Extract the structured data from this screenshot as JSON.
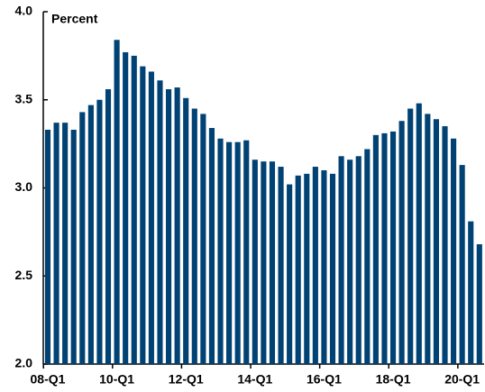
{
  "chart_data": {
    "type": "bar",
    "title": "Percent",
    "categories": [
      "08-Q1",
      null,
      null,
      null,
      null,
      null,
      null,
      null,
      "10-Q1",
      null,
      null,
      null,
      null,
      null,
      null,
      null,
      "12-Q1",
      null,
      null,
      null,
      null,
      null,
      null,
      null,
      "14-Q1",
      null,
      null,
      null,
      null,
      null,
      null,
      null,
      "16-Q1",
      null,
      null,
      null,
      null,
      null,
      null,
      null,
      "18-Q1",
      null,
      null,
      null,
      null,
      null,
      null,
      null,
      "20-Q1",
      null,
      null
    ],
    "values": [
      3.33,
      3.37,
      3.37,
      3.33,
      3.43,
      3.47,
      3.5,
      3.56,
      3.84,
      3.77,
      3.75,
      3.69,
      3.66,
      3.61,
      3.56,
      3.57,
      3.51,
      3.45,
      3.42,
      3.34,
      3.28,
      3.26,
      3.26,
      3.27,
      3.16,
      3.15,
      3.15,
      3.12,
      3.02,
      3.07,
      3.08,
      3.12,
      3.1,
      3.08,
      3.18,
      3.16,
      3.18,
      3.22,
      3.3,
      3.31,
      3.32,
      3.38,
      3.45,
      3.48,
      3.42,
      3.39,
      3.35,
      3.28,
      3.13,
      2.81,
      2.68
    ],
    "color": "#004273",
    "ylim": [
      2.0,
      4.0
    ],
    "yticks": [
      {
        "value": 2.0,
        "label": "2.0"
      },
      {
        "value": 2.5,
        "label": "2.5"
      },
      {
        "value": 3.0,
        "label": "3.0"
      },
      {
        "value": 3.5,
        "label": "3.5"
      },
      {
        "value": 4.0,
        "label": "4.0"
      }
    ]
  }
}
